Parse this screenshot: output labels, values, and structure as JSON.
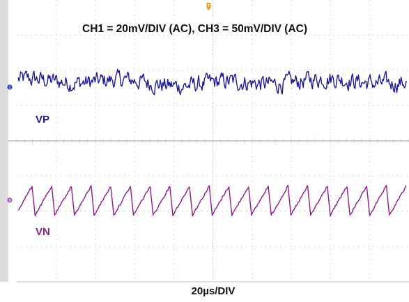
{
  "chart_data": {
    "type": "line",
    "title": "CH1 = 20mV/DIV (AC), CH3 = 50mV/DIV (AC)",
    "xlabel": "20µs/DIV",
    "grid": true,
    "x_divisions": 10,
    "y_divisions": 8,
    "time_per_div_us": 20,
    "series": [
      {
        "name": "VP",
        "channel": "1",
        "scale_mV_per_div": 20,
        "coupling": "AC",
        "color": "#1a1a9a",
        "shape": "noise",
        "peak_to_peak_div": 0.5
      },
      {
        "name": "VN",
        "channel": "3",
        "scale_mV_per_div": 50,
        "coupling": "AC",
        "color": "#8e1a8e",
        "shape": "sawtooth",
        "cycles": 20,
        "peak_to_peak_div": 0.85
      }
    ]
  },
  "markers": {
    "trigger": "T",
    "ch1": "1",
    "ch3": "3"
  },
  "colors": {
    "grid": "#c8c8c8",
    "divider": "#9a9a9a",
    "left_bar": "#dcdcdc",
    "trigger": "#e8a020",
    "ch1_marker": "#1e3cff",
    "ch3_marker": "#b050d0"
  }
}
